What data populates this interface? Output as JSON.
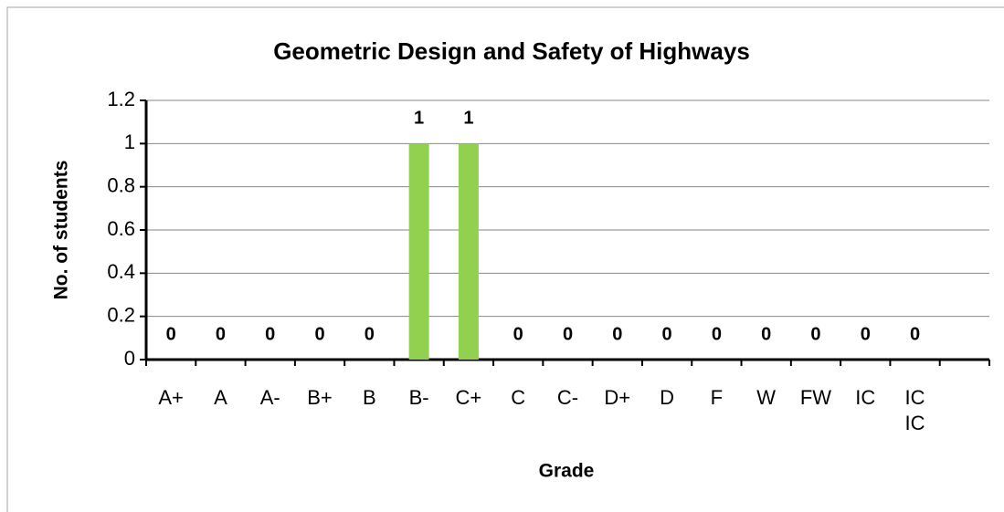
{
  "chart_data": {
    "type": "bar",
    "title": "Geometric Design and Safety of Highways",
    "x_label": "Grade",
    "y_label": "No. of students",
    "categories": [
      "A+",
      "A",
      "A-",
      "B+",
      "B",
      "B-",
      "C+",
      "C",
      "C-",
      "D+",
      "D",
      "F",
      "W",
      "FW",
      "IC",
      "IC IC",
      null
    ],
    "values": [
      0,
      0,
      0,
      0,
      0,
      1,
      1,
      0,
      0,
      0,
      0,
      0,
      0,
      0,
      0,
      0,
      null
    ],
    "color": "#92d050",
    "ylim": [
      0,
      1.2
    ],
    "yticks": [
      0,
      0.2,
      0.4,
      0.6,
      0.8,
      1,
      1.2
    ],
    "grid": true
  }
}
